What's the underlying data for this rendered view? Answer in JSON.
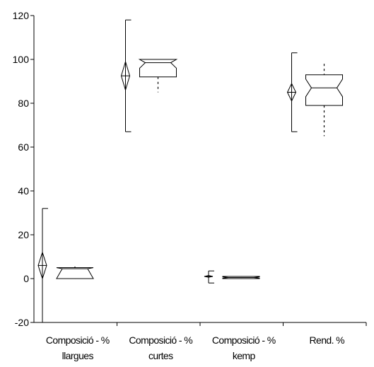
{
  "chart_data": {
    "type": "box",
    "title": "",
    "xlabel": "",
    "ylabel": "",
    "ylim": [
      -20,
      120
    ],
    "yticks": [
      -20,
      0,
      20,
      40,
      60,
      80,
      100,
      120
    ],
    "ytick_labels": [
      "-20",
      "0",
      "20",
      "40",
      "60",
      "80",
      "100",
      "120"
    ],
    "grid": false,
    "legend": "none",
    "categories": [
      [
        "Composició - %",
        "llargues"
      ],
      [
        "Composició - %",
        "curtes"
      ],
      [
        "Composició - %",
        "kemp"
      ],
      [
        "Rend. %"
      ]
    ],
    "mean_diamond": [
      {
        "mean": 6,
        "ci_low": 0,
        "ci_high": 12,
        "sd_low": -20,
        "sd_high": 32
      },
      {
        "mean": 92.5,
        "ci_low": 86,
        "ci_high": 99,
        "sd_low": 67,
        "sd_high": 118
      },
      {
        "mean": 1,
        "ci_low": 0.6,
        "ci_high": 1.4,
        "sd_low": -2,
        "sd_high": 3.5
      },
      {
        "mean": 85,
        "ci_low": 81,
        "ci_high": 89,
        "sd_low": 67,
        "sd_high": 103
      }
    ],
    "notched_box": [
      {
        "q1": 0,
        "median": 4.5,
        "q3": 5,
        "notch_low": 0,
        "notch_high": 5,
        "whisker_low": 0,
        "whisker_high": 5.5
      },
      {
        "q1": 92,
        "median": 98.5,
        "q3": 100,
        "notch_low": 96,
        "notch_high": 100,
        "whisker_low": 85,
        "whisker_high": 100
      },
      {
        "q1": 0,
        "median": 0.5,
        "q3": 1,
        "notch_low": 0.2,
        "notch_high": 0.8,
        "whisker_low": 0,
        "whisker_high": 1
      },
      {
        "q1": 79,
        "median": 87,
        "q3": 93,
        "notch_low": 83,
        "notch_high": 91,
        "whisker_low": 65,
        "whisker_high": 98
      }
    ]
  }
}
